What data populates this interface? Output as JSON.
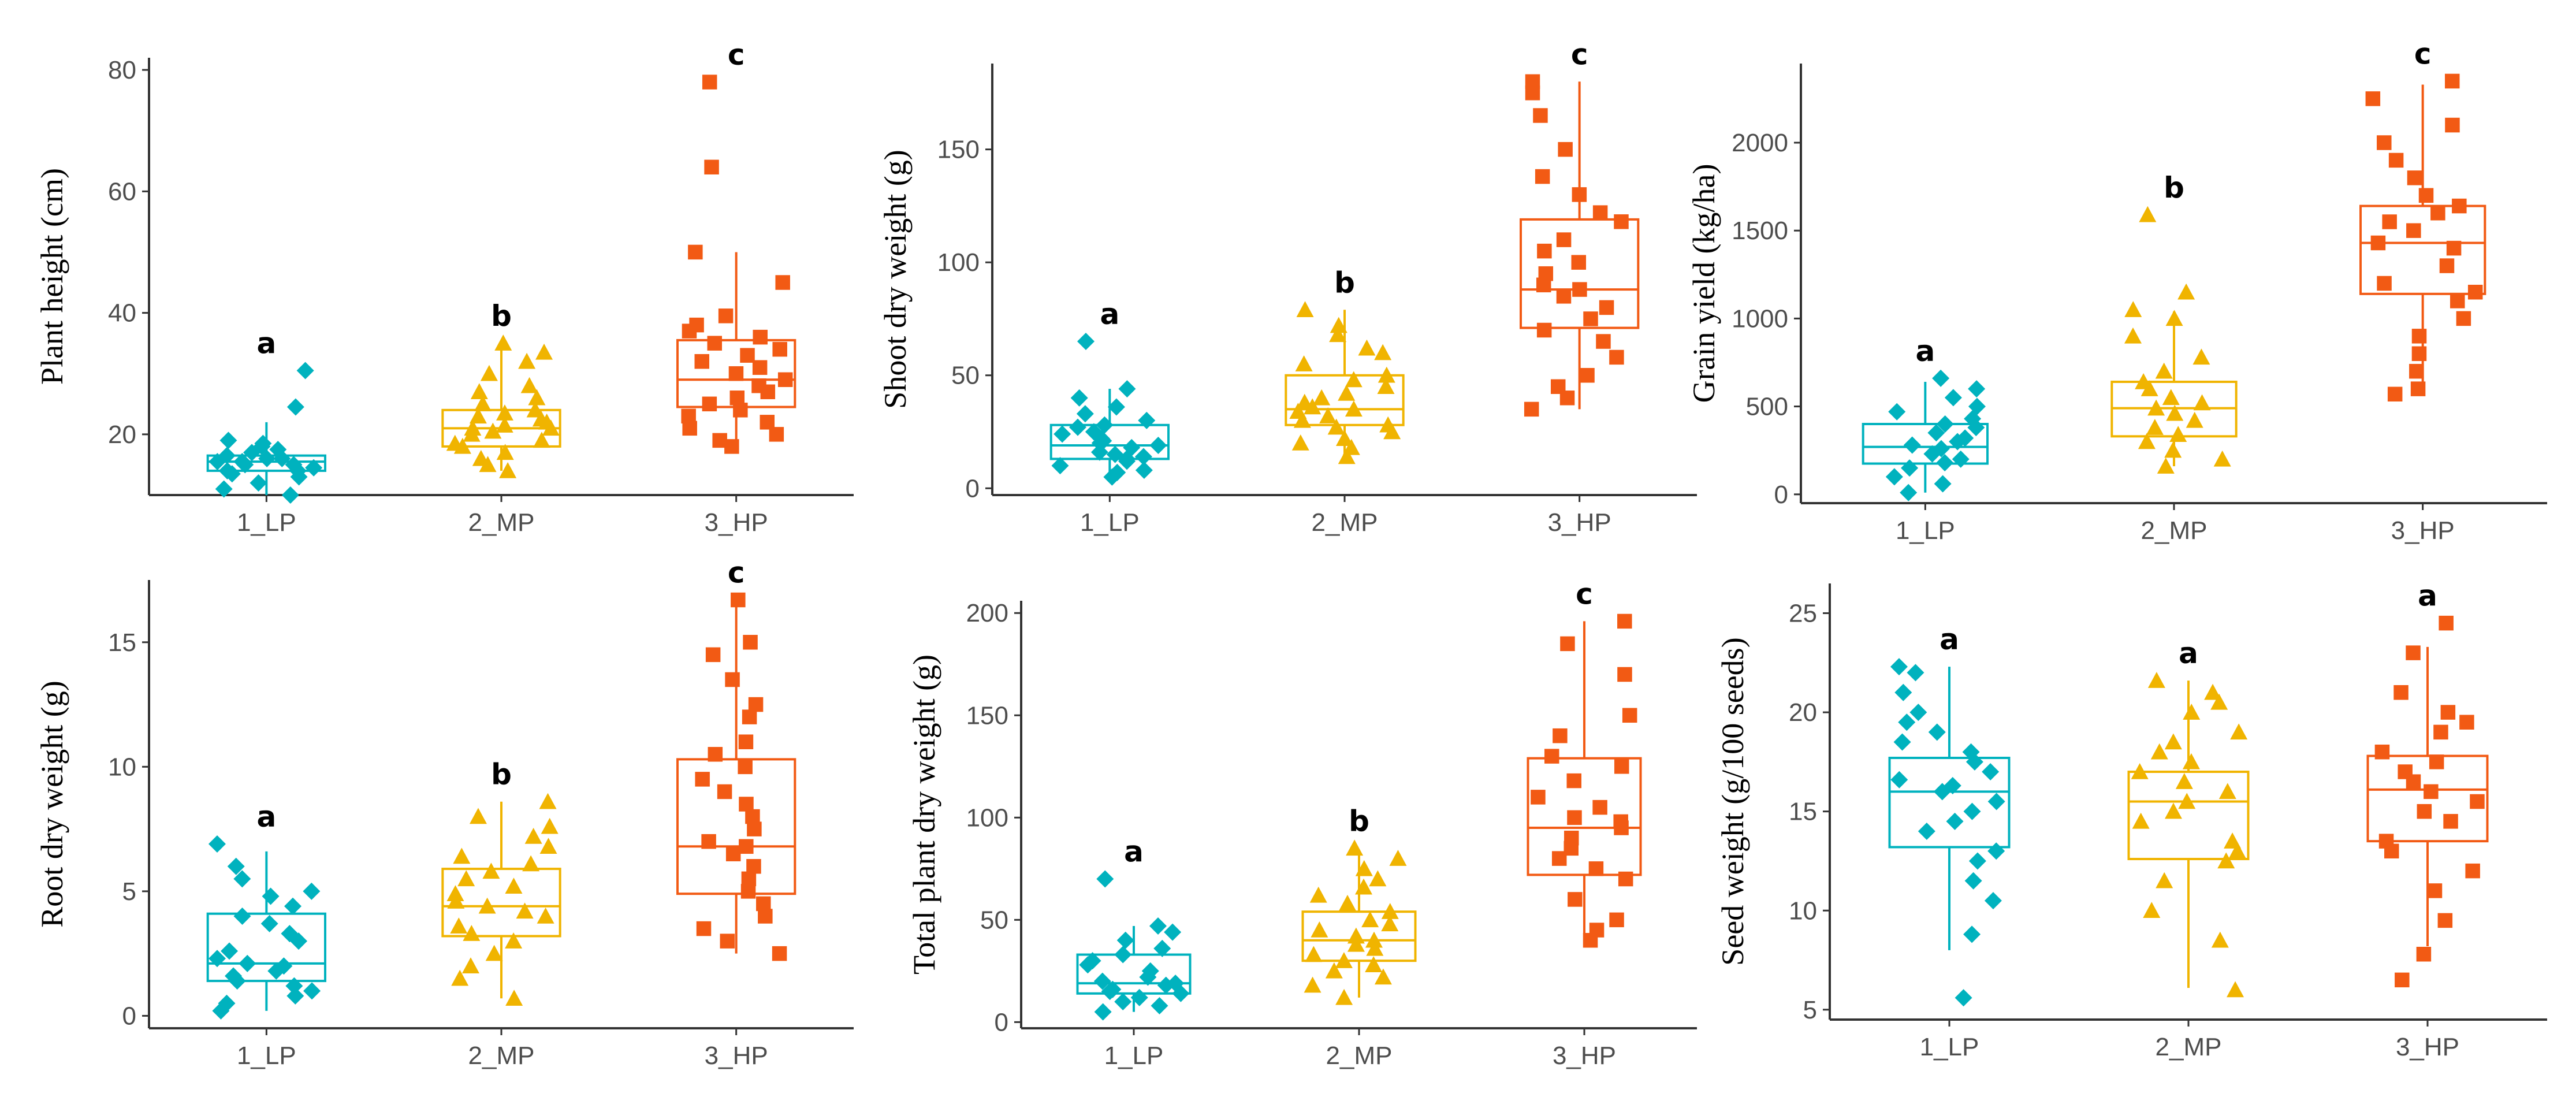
{
  "chart_data": [
    {
      "type": "box",
      "panel": "plant-height",
      "ylabel": "Plant height (cm)",
      "ylim": [
        10,
        82
      ],
      "yticks": [
        20,
        40,
        60,
        80
      ],
      "categories": [
        "1_LP",
        "2_MP",
        "3_HP"
      ],
      "colors": [
        "#00B2BE",
        "#F0B400",
        "#F25A14"
      ],
      "markers": [
        "diamond",
        "triangle",
        "square"
      ],
      "boxes": [
        {
          "q1": 14,
          "median": 15.5,
          "q3": 16.5,
          "whisker_low": 10,
          "whisker_high": 22
        },
        {
          "q1": 18,
          "median": 21,
          "q3": 24,
          "whisker_low": 14,
          "whisker_high": 35
        },
        {
          "q1": 24.5,
          "median": 29,
          "q3": 35.5,
          "whisker_low": 18,
          "whisker_high": 50
        }
      ],
      "letters": [
        "a",
        "b",
        "c"
      ],
      "points": [
        [
          10,
          11,
          12,
          13,
          13.5,
          14,
          14,
          14.5,
          15,
          15,
          15.5,
          15.5,
          16,
          16,
          16.5,
          17,
          17.5,
          18,
          18.5,
          19,
          24.5,
          30.5
        ],
        [
          14,
          15,
          16,
          17,
          18,
          18.5,
          19,
          20,
          20.5,
          21,
          21,
          21.5,
          22,
          22.5,
          23,
          23.5,
          24,
          25,
          26,
          27,
          28,
          30,
          32,
          33.5,
          35
        ],
        [
          18,
          19,
          20,
          21,
          22,
          23,
          24,
          25,
          26,
          27,
          28,
          29,
          30,
          31,
          32,
          33,
          34,
          35,
          36,
          37,
          38,
          39.5,
          45,
          50,
          64,
          78
        ]
      ]
    },
    {
      "type": "box",
      "panel": "shoot-dry-weight",
      "ylabel": "Shoot dry weight (g)",
      "ylim": [
        -3,
        188
      ],
      "yticks": [
        0,
        50,
        100,
        150
      ],
      "categories": [
        "1_LP",
        "2_MP",
        "3_HP"
      ],
      "colors": [
        "#00B2BE",
        "#F0B400",
        "#F25A14"
      ],
      "markers": [
        "diamond",
        "triangle",
        "square"
      ],
      "boxes": [
        {
          "q1": 13,
          "median": 19,
          "q3": 28,
          "whisker_low": 5,
          "whisker_high": 44
        },
        {
          "q1": 28,
          "median": 35,
          "q3": 50,
          "whisker_low": 14,
          "whisker_high": 79
        },
        {
          "q1": 71,
          "median": 88,
          "q3": 119,
          "whisker_low": 35,
          "whisker_high": 180
        }
      ],
      "letters": [
        "a",
        "b",
        "c"
      ],
      "points": [
        [
          5,
          7,
          8,
          10,
          12,
          13,
          14,
          15,
          16,
          18,
          19,
          20,
          21,
          22,
          24,
          25,
          27,
          28,
          30,
          33,
          36,
          40,
          44,
          65
        ],
        [
          14,
          18,
          20,
          22,
          25,
          27,
          28,
          30,
          32,
          34,
          35,
          36,
          38,
          40,
          42,
          45,
          48,
          50,
          55,
          60,
          62,
          68,
          72,
          79
        ],
        [
          35,
          40,
          45,
          50,
          58,
          65,
          70,
          75,
          80,
          85,
          88,
          90,
          95,
          100,
          105,
          110,
          118,
          122,
          130,
          138,
          150,
          165,
          175,
          180
        ]
      ]
    },
    {
      "type": "box",
      "panel": "grain-yield",
      "ylabel": "Grain  yield (kg/ha)",
      "ylim": [
        -50,
        2450
      ],
      "yticks": [
        0,
        500,
        1000,
        1500,
        2000
      ],
      "categories": [
        "1_LP",
        "2_MP",
        "3_HP"
      ],
      "colors": [
        "#00B2BE",
        "#F0B400",
        "#F25A14"
      ],
      "markers": [
        "diamond",
        "triangle",
        "square"
      ],
      "boxes": [
        {
          "q1": 175,
          "median": 270,
          "q3": 400,
          "whisker_low": 10,
          "whisker_high": 640
        },
        {
          "q1": 330,
          "median": 490,
          "q3": 640,
          "whisker_low": 160,
          "whisker_high": 1040
        },
        {
          "q1": 1140,
          "median": 1430,
          "q3": 1640,
          "whisker_low": 570,
          "whisker_high": 2330
        }
      ],
      "letters": [
        "a",
        "b",
        "c"
      ],
      "points": [
        [
          10,
          60,
          100,
          150,
          180,
          200,
          230,
          260,
          280,
          300,
          320,
          350,
          380,
          400,
          430,
          470,
          500,
          550,
          600,
          660
        ],
        [
          160,
          200,
          250,
          300,
          340,
          380,
          420,
          460,
          490,
          520,
          550,
          600,
          640,
          700,
          780,
          900,
          1000,
          1050,
          1150,
          1590
        ],
        [
          570,
          600,
          700,
          800,
          900,
          1000,
          1100,
          1150,
          1200,
          1300,
          1400,
          1430,
          1500,
          1550,
          1600,
          1640,
          1700,
          1800,
          1900,
          2000,
          2100,
          2250,
          2350
        ]
      ]
    },
    {
      "type": "box",
      "panel": "root-dry-weight",
      "ylabel": "Root dry weight (g)",
      "ylim": [
        -0.5,
        17.5
      ],
      "yticks": [
        0,
        5,
        10,
        15
      ],
      "categories": [
        "1_LP",
        "2_MP",
        "3_HP"
      ],
      "colors": [
        "#00B2BE",
        "#F0B400",
        "#F25A14"
      ],
      "markers": [
        "diamond",
        "triangle",
        "square"
      ],
      "boxes": [
        {
          "q1": 1.4,
          "median": 2.1,
          "q3": 4.1,
          "whisker_low": 0.2,
          "whisker_high": 6.6
        },
        {
          "q1": 3.2,
          "median": 4.4,
          "q3": 5.9,
          "whisker_low": 0.7,
          "whisker_high": 8.6
        },
        {
          "q1": 4.9,
          "median": 6.8,
          "q3": 10.3,
          "whisker_low": 2.5,
          "whisker_high": 16.7
        }
      ],
      "letters": [
        "a",
        "b",
        "c"
      ],
      "points": [
        [
          0.2,
          0.5,
          0.8,
          1.0,
          1.2,
          1.4,
          1.6,
          1.8,
          2.0,
          2.1,
          2.3,
          2.6,
          3.0,
          3.3,
          3.7,
          4.0,
          4.4,
          4.8,
          5.0,
          5.5,
          6.0,
          6.9
        ],
        [
          0.7,
          1.5,
          2.0,
          2.5,
          3.0,
          3.3,
          3.6,
          4.0,
          4.2,
          4.4,
          4.6,
          4.9,
          5.2,
          5.5,
          5.8,
          6.1,
          6.4,
          6.8,
          7.2,
          7.6,
          8.0,
          8.6
        ],
        [
          2.5,
          3.0,
          3.5,
          4.0,
          4.5,
          5.0,
          5.5,
          6.0,
          6.5,
          6.8,
          7.0,
          7.5,
          8.0,
          8.5,
          9.0,
          9.5,
          10.0,
          10.5,
          11.0,
          12.0,
          12.5,
          13.5,
          14.5,
          15.0,
          16.7
        ]
      ]
    },
    {
      "type": "box",
      "panel": "total-plant-dry-weight",
      "ylabel": "Total plant dry weight (g)",
      "ylim": [
        -3,
        206
      ],
      "yticks": [
        0,
        50,
        100,
        150,
        200
      ],
      "categories": [
        "1_LP",
        "2_MP",
        "3_HP"
      ],
      "colors": [
        "#00B2BE",
        "#F0B400",
        "#F25A14"
      ],
      "markers": [
        "diamond",
        "triangle",
        "square"
      ],
      "boxes": [
        {
          "q1": 14,
          "median": 19,
          "q3": 33,
          "whisker_low": 5,
          "whisker_high": 47
        },
        {
          "q1": 30,
          "median": 40,
          "q3": 54,
          "whisker_low": 12,
          "whisker_high": 83
        },
        {
          "q1": 72,
          "median": 95,
          "q3": 129,
          "whisker_low": 40,
          "whisker_high": 196
        }
      ],
      "letters": [
        "a",
        "b",
        "c"
      ],
      "points": [
        [
          5,
          8,
          10,
          12,
          14,
          15,
          16,
          18,
          19,
          20,
          22,
          25,
          28,
          30,
          33,
          36,
          40,
          44,
          47,
          70
        ],
        [
          12,
          18,
          22,
          25,
          28,
          30,
          33,
          36,
          38,
          40,
          42,
          45,
          48,
          50,
          54,
          58,
          62,
          66,
          70,
          75,
          80,
          85
        ],
        [
          40,
          45,
          50,
          60,
          70,
          75,
          80,
          85,
          90,
          95,
          98,
          100,
          105,
          110,
          118,
          125,
          130,
          140,
          150,
          170,
          185,
          196
        ]
      ]
    },
    {
      "type": "box",
      "panel": "seed-weight",
      "ylabel": "Seed weight (g/100 seeds)",
      "ylim": [
        4.5,
        26.5
      ],
      "yticks": [
        5,
        10,
        15,
        20,
        25
      ],
      "categories": [
        "1_LP",
        "2_MP",
        "3_HP"
      ],
      "colors": [
        "#00B2BE",
        "#F0B400",
        "#F25A14"
      ],
      "markers": [
        "diamond",
        "triangle",
        "square"
      ],
      "boxes": [
        {
          "q1": 13.2,
          "median": 16.0,
          "q3": 17.7,
          "whisker_low": 8.0,
          "whisker_high": 22.3
        },
        {
          "q1": 12.6,
          "median": 15.5,
          "q3": 17.0,
          "whisker_low": 6.1,
          "whisker_high": 21.6
        },
        {
          "q1": 13.5,
          "median": 16.1,
          "q3": 17.8,
          "whisker_low": 8.2,
          "whisker_high": 23.3
        }
      ],
      "letters": [
        "a",
        "a",
        "a"
      ],
      "points": [
        [
          5.6,
          8.8,
          10.5,
          11.5,
          12.5,
          13.0,
          14.0,
          14.5,
          15.0,
          15.5,
          16.0,
          16.3,
          16.6,
          17.0,
          17.5,
          18.0,
          18.5,
          19.0,
          19.5,
          20.0,
          21.0,
          22.0,
          22.3
        ],
        [
          6.0,
          8.5,
          10.0,
          11.5,
          12.5,
          13.0,
          13.5,
          14.5,
          15.0,
          15.5,
          16.0,
          16.5,
          17.0,
          17.5,
          18.0,
          18.5,
          19.0,
          20.0,
          20.5,
          21.0,
          21.6
        ],
        [
          6.5,
          7.8,
          9.5,
          11.0,
          12.0,
          13.0,
          13.5,
          14.5,
          15.0,
          15.5,
          16.0,
          16.5,
          17.0,
          17.5,
          18.0,
          19.0,
          19.5,
          20.0,
          21.0,
          23.0,
          24.5
        ]
      ]
    }
  ]
}
